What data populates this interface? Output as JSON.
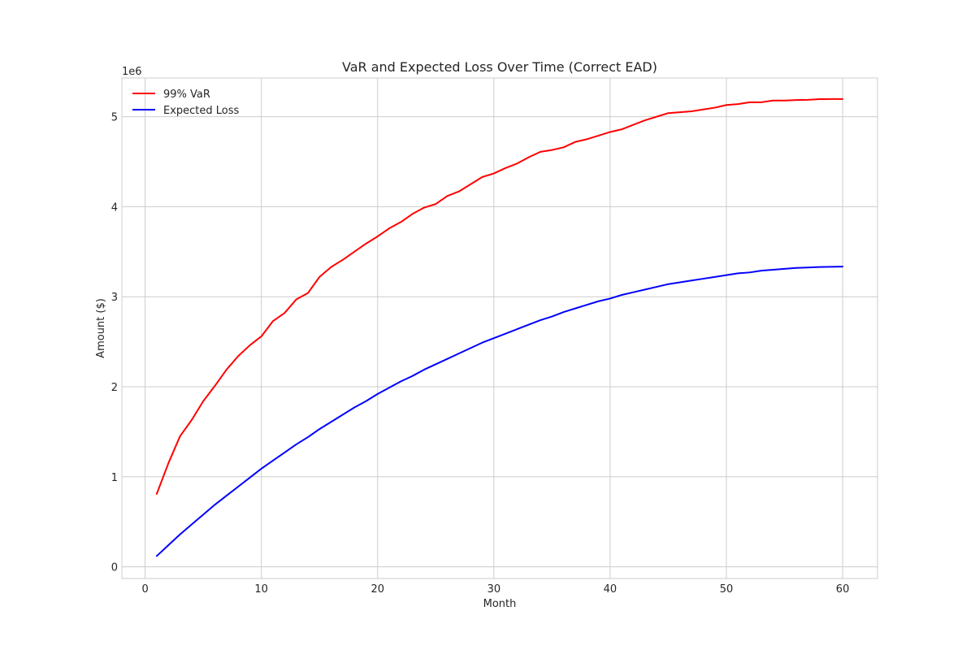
{
  "chart_data": {
    "type": "line",
    "title": "VaR and Expected Loss Over Time (Correct EAD)",
    "xlabel": "Month",
    "ylabel": "Amount ($)",
    "y_offset_label": "1e6",
    "xlim": [
      -2,
      63
    ],
    "ylim": [
      -130000,
      5430000
    ],
    "x_ticks": [
      0,
      10,
      20,
      30,
      40,
      50,
      60
    ],
    "y_ticks": [
      0,
      1000000,
      2000000,
      3000000,
      4000000,
      5000000
    ],
    "y_tick_labels": [
      "0",
      "1",
      "2",
      "3",
      "4",
      "5"
    ],
    "grid": true,
    "legend_position": "top-left",
    "x": [
      1,
      2,
      3,
      4,
      5,
      6,
      7,
      8,
      9,
      10,
      11,
      12,
      13,
      14,
      15,
      16,
      17,
      18,
      19,
      20,
      21,
      22,
      23,
      24,
      25,
      26,
      27,
      28,
      29,
      30,
      31,
      32,
      33,
      34,
      35,
      36,
      37,
      38,
      39,
      40,
      41,
      42,
      43,
      44,
      45,
      46,
      47,
      48,
      49,
      50,
      51,
      52,
      53,
      54,
      55,
      56,
      57,
      58,
      59,
      60
    ],
    "series": [
      {
        "name": "99% VaR",
        "color": "#ff0000",
        "values": [
          810000,
          1150000,
          1450000,
          1630000,
          1840000,
          2010000,
          2190000,
          2340000,
          2460000,
          2560000,
          2730000,
          2820000,
          2970000,
          3040000,
          3220000,
          3330000,
          3410000,
          3500000,
          3590000,
          3670000,
          3760000,
          3830000,
          3920000,
          3990000,
          4030000,
          4120000,
          4170000,
          4250000,
          4330000,
          4370000,
          4430000,
          4480000,
          4550000,
          4610000,
          4630000,
          4660000,
          4720000,
          4750000,
          4790000,
          4830000,
          4860000,
          4910000,
          4960000,
          5000000,
          5040000,
          5050000,
          5060000,
          5080000,
          5100000,
          5130000,
          5140000,
          5160000,
          5160000,
          5180000,
          5180000,
          5185000,
          5187000,
          5195000,
          5196000,
          5196000
        ]
      },
      {
        "name": "Expected Loss",
        "color": "#0000ff",
        "values": [
          120000,
          240000,
          360000,
          470000,
          580000,
          690000,
          790000,
          890000,
          990000,
          1090000,
          1180000,
          1270000,
          1360000,
          1440000,
          1530000,
          1610000,
          1690000,
          1770000,
          1840000,
          1920000,
          1990000,
          2060000,
          2120000,
          2190000,
          2250000,
          2310000,
          2370000,
          2430000,
          2490000,
          2540000,
          2590000,
          2640000,
          2690000,
          2740000,
          2780000,
          2830000,
          2870000,
          2910000,
          2950000,
          2980000,
          3020000,
          3050000,
          3080000,
          3110000,
          3140000,
          3160000,
          3180000,
          3200000,
          3220000,
          3240000,
          3260000,
          3270000,
          3290000,
          3300000,
          3310000,
          3320000,
          3325000,
          3330000,
          3333000,
          3335000
        ]
      }
    ]
  }
}
